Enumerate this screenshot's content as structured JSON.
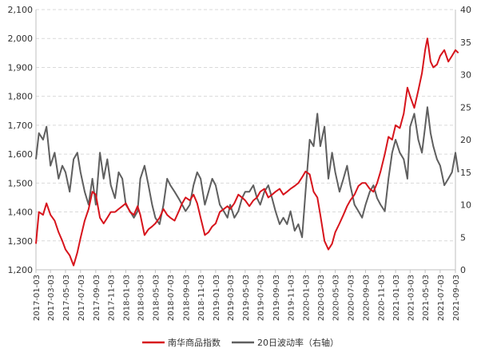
{
  "chart_data": {
    "type": "line",
    "x_ticks": [
      "2017-01-03",
      "2017-03-03",
      "2017-05-03",
      "2017-07-03",
      "2017-09-03",
      "2017-11-03",
      "2018-01-03",
      "2018-03-03",
      "2018-05-03",
      "2018-07-03",
      "2018-09-03",
      "2018-11-03",
      "2019-01-03",
      "2019-03-03",
      "2019-05-03",
      "2019-07-03",
      "2019-09-03",
      "2019-11-03",
      "2020-01-03",
      "2020-03-03",
      "2020-05-03",
      "2020-07-03",
      "2020-09-03",
      "2020-11-03",
      "2021-01-03",
      "2021-03-03",
      "2021-05-03",
      "2021-07-03",
      "2021-09-03"
    ],
    "y_left": {
      "min": 1200,
      "max": 2100,
      "ticks": [
        "1,200",
        "1,300",
        "1,400",
        "1,500",
        "1,600",
        "1,700",
        "1,800",
        "1,900",
        "2,000",
        "2,100"
      ]
    },
    "y_right": {
      "min": 0,
      "max": 40,
      "ticks": [
        "0",
        "5",
        "10",
        "15",
        "20",
        "25",
        "30",
        "35",
        "40"
      ]
    },
    "grid": "horizontal-dashed",
    "legend_position": "bottom",
    "series": [
      {
        "name": "南华商品指数",
        "axis": "left",
        "color": "#d7141c",
        "points": [
          [
            "2017-01-03",
            1290
          ],
          [
            "2017-01-15",
            1400
          ],
          [
            "2017-02-01",
            1390
          ],
          [
            "2017-02-15",
            1430
          ],
          [
            "2017-03-03",
            1390
          ],
          [
            "2017-03-20",
            1370
          ],
          [
            "2017-04-05",
            1330
          ],
          [
            "2017-04-20",
            1300
          ],
          [
            "2017-05-03",
            1270
          ],
          [
            "2017-05-20",
            1250
          ],
          [
            "2017-06-05",
            1215
          ],
          [
            "2017-06-20",
            1260
          ],
          [
            "2017-07-03",
            1310
          ],
          [
            "2017-07-20",
            1370
          ],
          [
            "2017-08-05",
            1410
          ],
          [
            "2017-08-20",
            1470
          ],
          [
            "2017-09-03",
            1460
          ],
          [
            "2017-09-20",
            1380
          ],
          [
            "2017-10-05",
            1360
          ],
          [
            "2017-10-20",
            1380
          ],
          [
            "2017-11-03",
            1400
          ],
          [
            "2017-11-20",
            1400
          ],
          [
            "2017-12-05",
            1410
          ],
          [
            "2017-12-20",
            1420
          ],
          [
            "2018-01-03",
            1430
          ],
          [
            "2018-01-20",
            1400
          ],
          [
            "2018-02-05",
            1390
          ],
          [
            "2018-02-20",
            1420
          ],
          [
            "2018-03-03",
            1390
          ],
          [
            "2018-03-20",
            1320
          ],
          [
            "2018-04-05",
            1340
          ],
          [
            "2018-04-20",
            1350
          ],
          [
            "2018-05-03",
            1360
          ],
          [
            "2018-05-20",
            1380
          ],
          [
            "2018-06-05",
            1410
          ],
          [
            "2018-06-20",
            1390
          ],
          [
            "2018-07-03",
            1380
          ],
          [
            "2018-07-20",
            1370
          ],
          [
            "2018-08-05",
            1400
          ],
          [
            "2018-08-20",
            1430
          ],
          [
            "2018-09-03",
            1450
          ],
          [
            "2018-09-20",
            1440
          ],
          [
            "2018-10-05",
            1460
          ],
          [
            "2018-10-20",
            1430
          ],
          [
            "2018-11-03",
            1380
          ],
          [
            "2018-11-20",
            1320
          ],
          [
            "2018-12-05",
            1330
          ],
          [
            "2018-12-20",
            1350
          ],
          [
            "2019-01-03",
            1360
          ],
          [
            "2019-01-20",
            1400
          ],
          [
            "2019-02-05",
            1410
          ],
          [
            "2019-02-20",
            1420
          ],
          [
            "2019-03-03",
            1410
          ],
          [
            "2019-03-20",
            1430
          ],
          [
            "2019-04-05",
            1460
          ],
          [
            "2019-04-20",
            1450
          ],
          [
            "2019-05-03",
            1440
          ],
          [
            "2019-05-20",
            1420
          ],
          [
            "2019-06-05",
            1440
          ],
          [
            "2019-06-20",
            1450
          ],
          [
            "2019-07-03",
            1470
          ],
          [
            "2019-07-20",
            1480
          ],
          [
            "2019-08-05",
            1450
          ],
          [
            "2019-08-20",
            1460
          ],
          [
            "2019-09-03",
            1470
          ],
          [
            "2019-09-20",
            1480
          ],
          [
            "2019-10-05",
            1460
          ],
          [
            "2019-10-20",
            1470
          ],
          [
            "2019-11-03",
            1480
          ],
          [
            "2019-11-20",
            1490
          ],
          [
            "2019-12-05",
            1500
          ],
          [
            "2019-12-20",
            1520
          ],
          [
            "2020-01-03",
            1540
          ],
          [
            "2020-01-20",
            1530
          ],
          [
            "2020-02-05",
            1470
          ],
          [
            "2020-02-20",
            1450
          ],
          [
            "2020-03-03",
            1390
          ],
          [
            "2020-03-20",
            1300
          ],
          [
            "2020-04-05",
            1270
          ],
          [
            "2020-04-20",
            1290
          ],
          [
            "2020-05-03",
            1330
          ],
          [
            "2020-05-20",
            1360
          ],
          [
            "2020-06-05",
            1390
          ],
          [
            "2020-06-20",
            1420
          ],
          [
            "2020-07-03",
            1440
          ],
          [
            "2020-07-20",
            1460
          ],
          [
            "2020-08-05",
            1490
          ],
          [
            "2020-08-20",
            1500
          ],
          [
            "2020-09-03",
            1500
          ],
          [
            "2020-09-20",
            1480
          ],
          [
            "2020-10-05",
            1470
          ],
          [
            "2020-10-20",
            1500
          ],
          [
            "2020-11-03",
            1540
          ],
          [
            "2020-11-20",
            1600
          ],
          [
            "2020-12-05",
            1660
          ],
          [
            "2020-12-20",
            1650
          ],
          [
            "2021-01-03",
            1700
          ],
          [
            "2021-01-20",
            1690
          ],
          [
            "2021-02-05",
            1740
          ],
          [
            "2021-02-20",
            1830
          ],
          [
            "2021-03-03",
            1800
          ],
          [
            "2021-03-20",
            1760
          ],
          [
            "2021-04-05",
            1820
          ],
          [
            "2021-04-20",
            1880
          ],
          [
            "2021-05-03",
            1960
          ],
          [
            "2021-05-12",
            2000
          ],
          [
            "2021-05-25",
            1920
          ],
          [
            "2021-06-05",
            1900
          ],
          [
            "2021-06-20",
            1910
          ],
          [
            "2021-07-03",
            1940
          ],
          [
            "2021-07-20",
            1960
          ],
          [
            "2021-08-05",
            1920
          ],
          [
            "2021-08-20",
            1940
          ],
          [
            "2021-09-03",
            1960
          ],
          [
            "2021-09-15",
            1950
          ]
        ]
      },
      {
        "name": "20日波动率（右轴）",
        "axis": "right",
        "color": "#5f5f5f",
        "points": [
          [
            "2017-01-03",
            17
          ],
          [
            "2017-01-15",
            21
          ],
          [
            "2017-02-01",
            20
          ],
          [
            "2017-02-15",
            22
          ],
          [
            "2017-03-03",
            16
          ],
          [
            "2017-03-20",
            18
          ],
          [
            "2017-04-05",
            14
          ],
          [
            "2017-04-20",
            16
          ],
          [
            "2017-05-03",
            15
          ],
          [
            "2017-05-20",
            12
          ],
          [
            "2017-06-05",
            17
          ],
          [
            "2017-06-20",
            18
          ],
          [
            "2017-07-03",
            15
          ],
          [
            "2017-07-20",
            12
          ],
          [
            "2017-08-05",
            10
          ],
          [
            "2017-08-20",
            14
          ],
          [
            "2017-09-03",
            10
          ],
          [
            "2017-09-20",
            18
          ],
          [
            "2017-10-05",
            14
          ],
          [
            "2017-10-20",
            17
          ],
          [
            "2017-11-03",
            13
          ],
          [
            "2017-11-20",
            11
          ],
          [
            "2017-12-05",
            15
          ],
          [
            "2017-12-20",
            14
          ],
          [
            "2018-01-03",
            10
          ],
          [
            "2018-01-20",
            9
          ],
          [
            "2018-02-05",
            8
          ],
          [
            "2018-02-20",
            9
          ],
          [
            "2018-03-03",
            14
          ],
          [
            "2018-03-20",
            16
          ],
          [
            "2018-04-05",
            13
          ],
          [
            "2018-04-20",
            10
          ],
          [
            "2018-05-03",
            8
          ],
          [
            "2018-05-20",
            7
          ],
          [
            "2018-06-05",
            10
          ],
          [
            "2018-06-20",
            14
          ],
          [
            "2018-07-03",
            13
          ],
          [
            "2018-07-20",
            12
          ],
          [
            "2018-08-05",
            11
          ],
          [
            "2018-08-20",
            10
          ],
          [
            "2018-09-03",
            9
          ],
          [
            "2018-09-20",
            10
          ],
          [
            "2018-10-05",
            13
          ],
          [
            "2018-10-20",
            15
          ],
          [
            "2018-11-03",
            14
          ],
          [
            "2018-11-20",
            10
          ],
          [
            "2018-12-05",
            12
          ],
          [
            "2018-12-20",
            14
          ],
          [
            "2019-01-03",
            13
          ],
          [
            "2019-01-20",
            10
          ],
          [
            "2019-02-05",
            9
          ],
          [
            "2019-02-20",
            8
          ],
          [
            "2019-03-03",
            10
          ],
          [
            "2019-03-20",
            8
          ],
          [
            "2019-04-05",
            9
          ],
          [
            "2019-04-20",
            11
          ],
          [
            "2019-05-03",
            12
          ],
          [
            "2019-05-20",
            12
          ],
          [
            "2019-06-05",
            13
          ],
          [
            "2019-06-20",
            11
          ],
          [
            "2019-07-03",
            10
          ],
          [
            "2019-07-20",
            12
          ],
          [
            "2019-08-05",
            13
          ],
          [
            "2019-08-20",
            11
          ],
          [
            "2019-09-03",
            9
          ],
          [
            "2019-09-20",
            7
          ],
          [
            "2019-10-05",
            8
          ],
          [
            "2019-10-20",
            7
          ],
          [
            "2019-11-03",
            9
          ],
          [
            "2019-11-20",
            6
          ],
          [
            "2019-12-05",
            7
          ],
          [
            "2019-12-20",
            5
          ],
          [
            "2020-01-03",
            12
          ],
          [
            "2020-01-20",
            20
          ],
          [
            "2020-02-05",
            19
          ],
          [
            "2020-02-20",
            24
          ],
          [
            "2020-03-03",
            19
          ],
          [
            "2020-03-20",
            22
          ],
          [
            "2020-04-05",
            14
          ],
          [
            "2020-04-20",
            18
          ],
          [
            "2020-05-03",
            15
          ],
          [
            "2020-05-20",
            12
          ],
          [
            "2020-06-05",
            14
          ],
          [
            "2020-06-20",
            16
          ],
          [
            "2020-07-03",
            13
          ],
          [
            "2020-07-20",
            10
          ],
          [
            "2020-08-05",
            9
          ],
          [
            "2020-08-20",
            8
          ],
          [
            "2020-09-03",
            10
          ],
          [
            "2020-09-20",
            12
          ],
          [
            "2020-10-05",
            13
          ],
          [
            "2020-10-20",
            11
          ],
          [
            "2020-11-03",
            10
          ],
          [
            "2020-11-20",
            9
          ],
          [
            "2020-12-05",
            14
          ],
          [
            "2020-12-20",
            18
          ],
          [
            "2021-01-03",
            20
          ],
          [
            "2021-01-20",
            18
          ],
          [
            "2021-02-05",
            17
          ],
          [
            "2021-02-20",
            14
          ],
          [
            "2021-03-03",
            22
          ],
          [
            "2021-03-20",
            24
          ],
          [
            "2021-04-05",
            20
          ],
          [
            "2021-04-20",
            18
          ],
          [
            "2021-05-03",
            22
          ],
          [
            "2021-05-12",
            25
          ],
          [
            "2021-05-25",
            21
          ],
          [
            "2021-06-05",
            19
          ],
          [
            "2021-06-20",
            17
          ],
          [
            "2021-07-03",
            16
          ],
          [
            "2021-07-20",
            13
          ],
          [
            "2021-08-05",
            14
          ],
          [
            "2021-08-20",
            15
          ],
          [
            "2021-09-03",
            18
          ],
          [
            "2021-09-15",
            15
          ]
        ]
      }
    ]
  }
}
